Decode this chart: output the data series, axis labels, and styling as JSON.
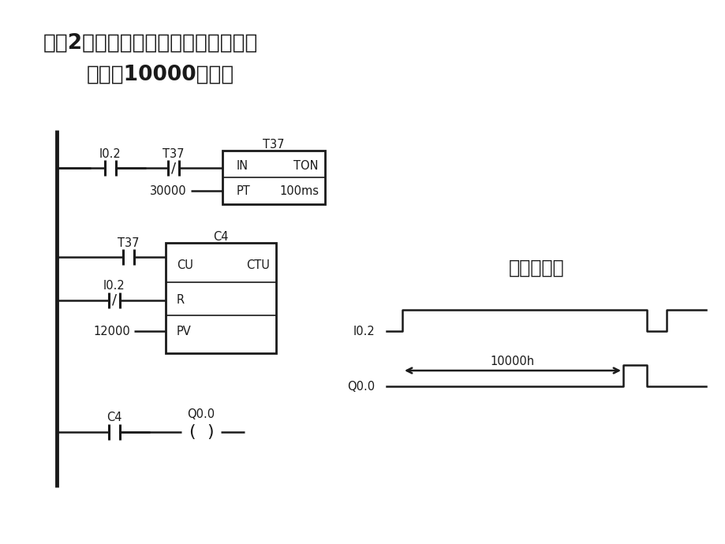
{
  "bg_color": "#ffffff",
  "title_line1": "方案2：用计数器扩展定时器定时范围",
  "title_line2": "（最长10000小时）",
  "title_fontsize": 19,
  "line_color": "#1a1a1a",
  "text_color": "#1a1a1a",
  "label_fontsize": 12,
  "small_fontsize": 10.5,
  "timing_label": "逻辑时序图",
  "timing_fontsize": 17
}
